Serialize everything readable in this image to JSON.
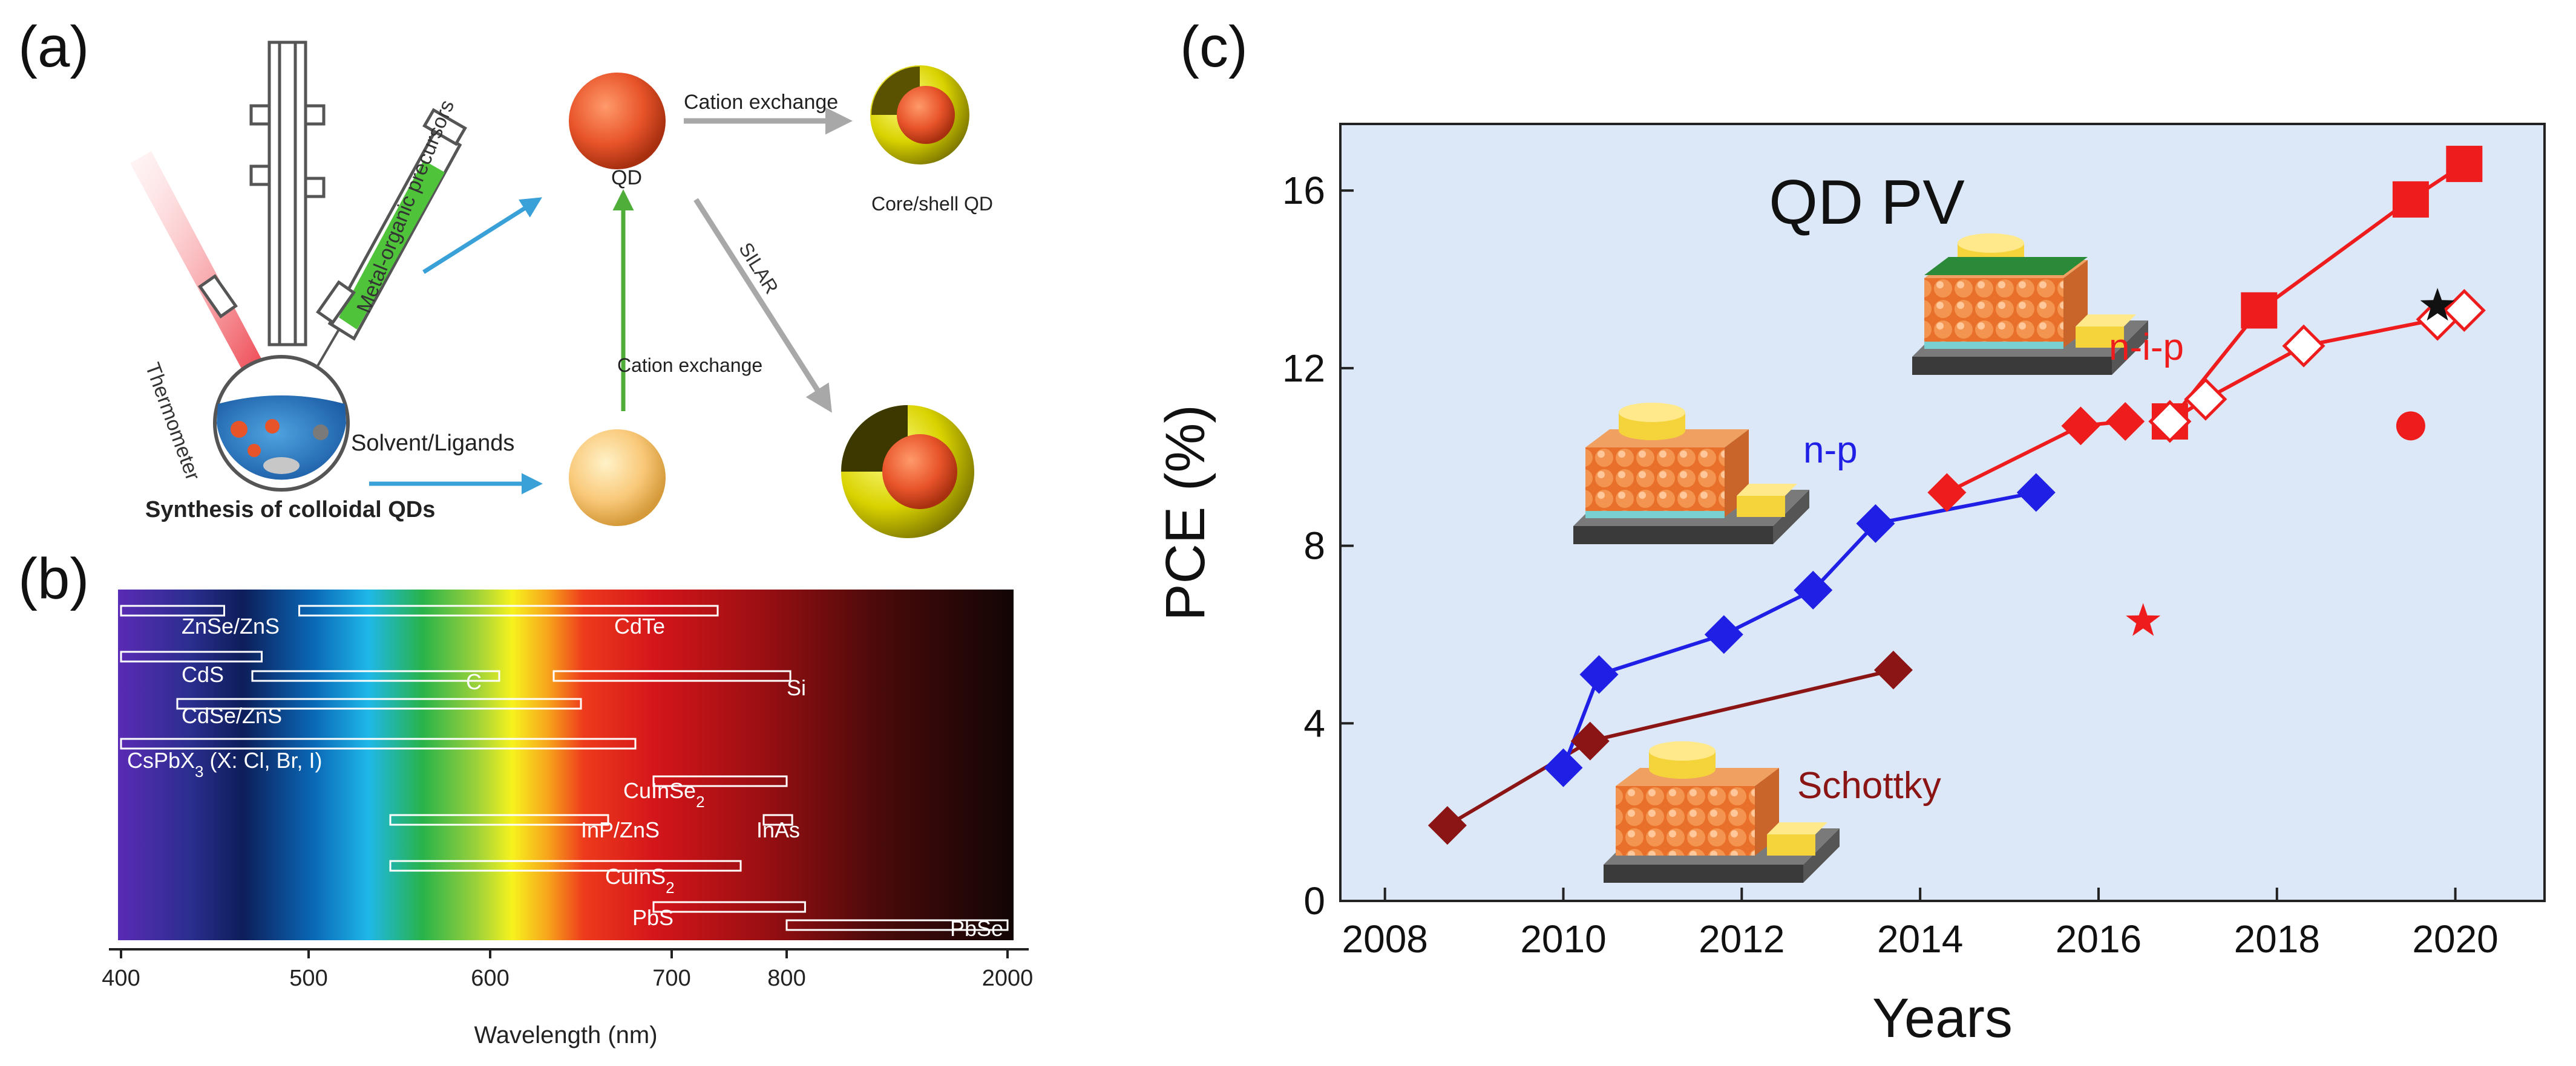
{
  "panel_labels": {
    "a": "(a)",
    "b": "(b)",
    "c": "(c)"
  },
  "panel_a": {
    "labels": {
      "thermometer": "Thermometer",
      "precursors": "Metal-organic precursors",
      "solvent": "Solvent/Ligands",
      "synthesis": "Synthesis of colloidal QDs",
      "qd": "QD",
      "cation_exchange_top": "Cation exchange",
      "core_shell": "Core/shell QD",
      "silar": "SILAR",
      "cation_exchange_mid": "Cation exchange"
    },
    "colors": {
      "qd": "#e8542a",
      "shell": "#d9d200",
      "precursor": "#4fc43a",
      "arrow_blue": "#3aa0d8",
      "arrow_green": "#4fae3a",
      "arrow_gray": "#a8a8a8"
    }
  },
  "chart_data": [
    {
      "type": "bar",
      "id": "b",
      "orientation": "horizontal-range",
      "xlabel": "Wavelength (nm)",
      "x_ticks": [
        "400",
        "500",
        "600",
        "700",
        "800",
        "2000"
      ],
      "materials": [
        {
          "name": "ZnSe/ZnS",
          "label": "ZnSe/ZnS",
          "start": 400,
          "end": 455
        },
        {
          "name": "CdTe",
          "label": "CdTe",
          "start": 495,
          "end": 740
        },
        {
          "name": "CdS",
          "label": "CdS",
          "start": 400,
          "end": 475
        },
        {
          "name": "C",
          "label": "C",
          "start": 470,
          "end": 605
        },
        {
          "name": "Si",
          "label": "Si",
          "start": 635,
          "end": 820
        },
        {
          "name": "CdSe/ZnS",
          "label": "CdSe/ZnS",
          "start": 430,
          "end": 650
        },
        {
          "name": "CsPbX3",
          "label": "CsPbX3 (X: Cl, Br, I)",
          "start": 400,
          "end": 680
        },
        {
          "name": "CuInSe2",
          "label": "CuInSe2",
          "start": 690,
          "end": 800
        },
        {
          "name": "InP/ZnS",
          "label": "InP/ZnS",
          "start": 545,
          "end": 665
        },
        {
          "name": "InAs",
          "label": "InAs",
          "start": 780,
          "end": 830
        },
        {
          "name": "CuInS2",
          "label": "CuInS2",
          "start": 545,
          "end": 760
        },
        {
          "name": "PbS",
          "label": "PbS",
          "start": 690,
          "end": 900
        },
        {
          "name": "PbSe",
          "label": "PbSe",
          "start": 800,
          "end": 2000
        }
      ]
    },
    {
      "type": "line",
      "id": "c",
      "title": "QD PV",
      "xlabel": "Years",
      "ylabel": "PCE (%)",
      "xlim": [
        2007.5,
        2021
      ],
      "ylim": [
        0,
        17.5
      ],
      "x_ticks": [
        2008,
        2010,
        2012,
        2014,
        2016,
        2018,
        2020
      ],
      "y_ticks": [
        0,
        4,
        8,
        12,
        16
      ],
      "x_tick_labels": [
        "2008",
        "2010",
        "2012",
        "2014",
        "2016",
        "2018",
        "2020"
      ],
      "y_tick_labels": [
        "0",
        "4",
        "8",
        "12",
        "16"
      ],
      "background": "#dce8f8",
      "series": [
        {
          "name": "Schottky",
          "color": "#8b1515",
          "marker": "diamond",
          "x": [
            2008.7,
            2010.3,
            2013.7
          ],
          "y": [
            1.7,
            3.6,
            5.2
          ]
        },
        {
          "name": "n-p",
          "color": "#1f1fe6",
          "marker": "diamond",
          "x": [
            2010.0,
            2010.4,
            2011.8,
            2012.8,
            2013.5,
            2015.3
          ],
          "y": [
            3.0,
            5.1,
            6.0,
            7.0,
            8.5,
            9.2
          ]
        },
        {
          "name": "n-i-p",
          "color": "#ee1c1c",
          "marker": "diamond",
          "x": [
            2014.3,
            2015.8,
            2016.3
          ],
          "y": [
            9.2,
            10.7,
            10.8
          ]
        },
        {
          "name": "n-i-p squares",
          "color": "#ee1c1c",
          "marker": "square",
          "x": [
            2016.8,
            2017.8,
            2019.5,
            2020.1
          ],
          "y": [
            10.8,
            13.3,
            15.8,
            16.6
          ]
        },
        {
          "name": "n-i-p open",
          "color": "#ee1c1c",
          "marker": "open-diamond",
          "x": [
            2016.8,
            2017.2,
            2018.3,
            2019.8,
            2020.1
          ],
          "y": [
            10.8,
            11.3,
            12.5,
            13.1,
            13.3
          ]
        }
      ],
      "singles": [
        {
          "name": "red-star",
          "color": "#ee1c1c",
          "marker": "star",
          "x": 2016.5,
          "y": 6.3
        },
        {
          "name": "red-circle",
          "color": "#ee1c1c",
          "marker": "circle",
          "x": 2019.5,
          "y": 10.7
        },
        {
          "name": "black-star",
          "color": "#111111",
          "marker": "star",
          "x": 2019.8,
          "y": 13.4
        }
      ],
      "annotations": [
        {
          "text": "n-i-p",
          "color": "#ee1c1c"
        },
        {
          "text": "n-p",
          "color": "#1f1fe6"
        },
        {
          "text": "Schottky",
          "color": "#8b1515"
        }
      ]
    }
  ]
}
